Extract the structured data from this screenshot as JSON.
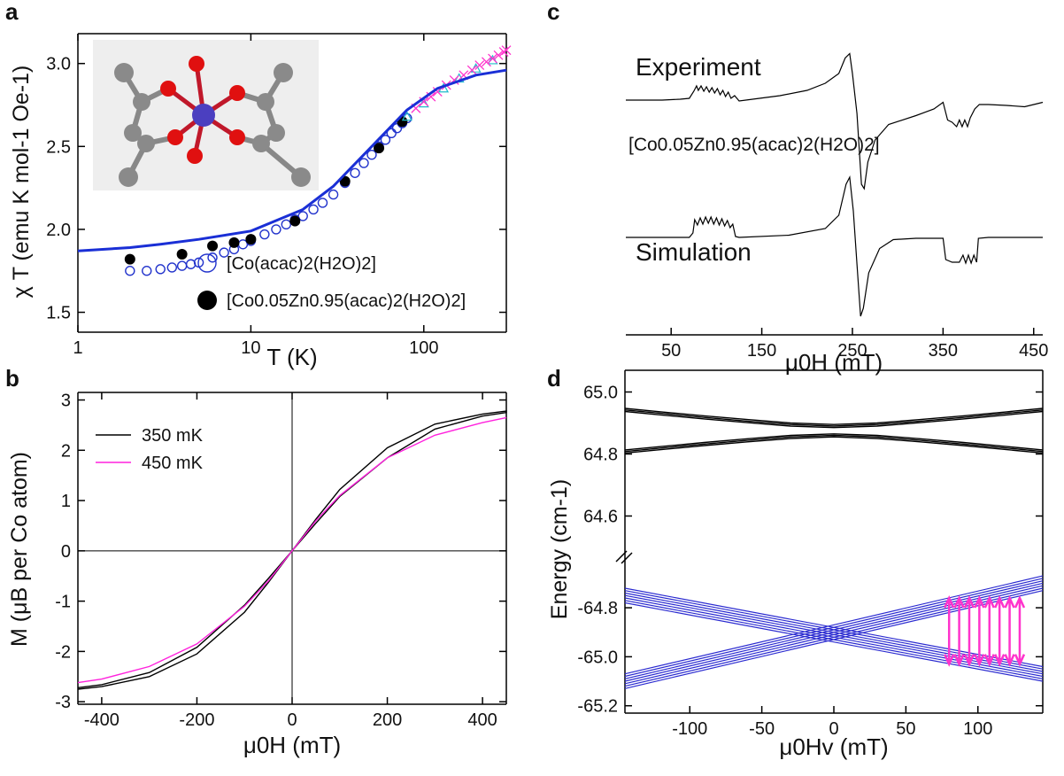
{
  "chart_data": [
    {
      "type": "scatter",
      "panel_label": "a",
      "xlabel": "T (K)",
      "ylabel": "χ T (emu K mol-1 Oe-1)",
      "xscale": "log",
      "xlim": [
        1,
        300
      ],
      "xticks": [
        1,
        10,
        100
      ],
      "ylim": [
        1.38,
        3.18
      ],
      "yticks": [
        1.5,
        {
          "value": 2,
          "label": "2.0"
        },
        2.5,
        {
          "value": 3,
          "label": "3.0"
        }
      ],
      "legend": "lower-center",
      "series": [
        {
          "name": "[Co(acac)2(H2O)2]",
          "color": "#2233cc",
          "marker": "open-circle",
          "x": [
            2,
            2.5,
            3,
            3.5,
            4,
            4.5,
            5,
            6,
            7,
            8,
            9,
            10,
            12,
            14,
            16,
            18,
            20,
            23,
            26,
            30,
            35,
            40,
            45,
            50,
            55,
            60,
            65,
            70,
            75,
            80
          ],
          "values": [
            1.75,
            1.75,
            1.76,
            1.77,
            1.78,
            1.79,
            1.8,
            1.83,
            1.86,
            1.88,
            1.91,
            1.93,
            1.97,
            2.0,
            2.03,
            2.06,
            2.08,
            2.12,
            2.16,
            2.21,
            2.28,
            2.34,
            2.4,
            2.45,
            2.5,
            2.54,
            2.58,
            2.61,
            2.64,
            2.67
          ]
        },
        {
          "name": "[Co0.05Zn0.95(acac)2(H2O)2]",
          "color": "#000000",
          "marker": "filled-circle",
          "x": [
            2,
            4,
            6,
            8,
            10,
            18,
            35,
            55,
            75
          ],
          "values": [
            1.82,
            1.85,
            1.9,
            1.92,
            1.94,
            2.05,
            2.29,
            2.49,
            2.65
          ]
        },
        {
          "color": "#22bbcc",
          "marker": "triangle",
          "x": [
            80,
            100,
            130,
            160,
            200,
            250
          ],
          "values": [
            2.68,
            2.76,
            2.85,
            2.91,
            2.97,
            3.02
          ]
        },
        {
          "color": "#ff33cc",
          "marker": "cross",
          "x": [
            90,
            100,
            110,
            120,
            135,
            150,
            170,
            190,
            210,
            230,
            250,
            270,
            290,
            300
          ],
          "values": [
            2.73,
            2.77,
            2.8,
            2.83,
            2.87,
            2.9,
            2.93,
            2.96,
            2.99,
            3.01,
            3.03,
            3.05,
            3.07,
            3.08
          ]
        },
        {
          "color": "#1a2fd6",
          "marker": "line",
          "x": [
            1,
            2,
            3,
            5,
            10,
            20,
            30,
            50,
            80,
            120,
            200,
            300
          ],
          "values": [
            1.87,
            1.89,
            1.91,
            1.94,
            1.99,
            2.12,
            2.26,
            2.5,
            2.72,
            2.85,
            2.93,
            2.96
          ]
        }
      ]
    },
    {
      "type": "line",
      "panel_label": "b",
      "xlabel": "μ0H (mT)",
      "ylabel": "M (μB per Co atom)",
      "xlim": [
        -450,
        450
      ],
      "xticks": [
        -400,
        -200,
        0,
        200,
        400
      ],
      "ylim": [
        -3.05,
        3.15
      ],
      "yticks": [
        -3,
        -2,
        -1,
        0,
        1,
        2,
        3
      ],
      "zero_lines": true,
      "legend": "upper-left",
      "series": [
        {
          "name": "350 mK",
          "color": "#000000",
          "marker": "line",
          "x": [
            -450,
            -400,
            -300,
            -200,
            -100,
            -50,
            0,
            50,
            100,
            200,
            300,
            400,
            450,
            450,
            400,
            300,
            200,
            100,
            50,
            0,
            -50,
            -100,
            -200,
            -300,
            -400,
            -450
          ],
          "values": [
            -2.72,
            -2.66,
            -2.42,
            -1.92,
            -1.08,
            -0.55,
            0,
            0.55,
            1.08,
            1.85,
            2.42,
            2.68,
            2.75,
            2.78,
            2.72,
            2.52,
            2.05,
            1.22,
            0.63,
            0,
            -0.63,
            -1.22,
            -2.05,
            -2.5,
            -2.7,
            -2.75
          ]
        },
        {
          "name": "450 mK",
          "color": "#ff22dd",
          "marker": "line",
          "x": [
            -450,
            -400,
            -300,
            -200,
            -100,
            -50,
            0,
            50,
            100,
            200,
            300,
            400,
            450
          ],
          "values": [
            -2.62,
            -2.55,
            -2.3,
            -1.85,
            -1.1,
            -0.6,
            0,
            0.6,
            1.1,
            1.85,
            2.3,
            2.55,
            2.65
          ]
        }
      ]
    },
    {
      "type": "spectra",
      "panel_label": "c",
      "xlabel": "μ0H (mT)",
      "xlim": [
        0,
        460
      ],
      "xticks": [
        50,
        150,
        250,
        350,
        450
      ],
      "annotation": "[Co0.05Zn0.95(acac)2(H2O)2]",
      "series": [
        {
          "name": "Experiment",
          "color": "#000000",
          "x": [
            0,
            20,
            40,
            60,
            70,
            75,
            78,
            80,
            83,
            86,
            89,
            92,
            95,
            98,
            101,
            104,
            107,
            110,
            113,
            116,
            120,
            125,
            140,
            170,
            200,
            220,
            235,
            242,
            247,
            250,
            255,
            260,
            263,
            267,
            275,
            290,
            320,
            340,
            350,
            355,
            360,
            365,
            368,
            371,
            374,
            377,
            380,
            385,
            390,
            400,
            420,
            440,
            450,
            460
          ],
          "values": [
            0,
            0,
            0,
            0.02,
            0.04,
            0.2,
            0.32,
            0.22,
            0.32,
            0.2,
            0.3,
            0.18,
            0.28,
            0.16,
            0.26,
            0.12,
            0.22,
            0.08,
            0.18,
            0.04,
            0.1,
            -0.02,
            0.02,
            0.1,
            0.22,
            0.38,
            0.6,
            0.95,
            1.05,
            0.6,
            -0.3,
            -1.9,
            -2.0,
            -1.4,
            -0.9,
            -0.55,
            -0.35,
            -0.2,
            -0.05,
            -0.45,
            -0.5,
            -0.6,
            -0.45,
            -0.6,
            -0.45,
            -0.6,
            -0.4,
            -0.2,
            -0.1,
            -0.1,
            -0.12,
            -0.15,
            -0.1,
            -0.05
          ]
        },
        {
          "name": "Simulation",
          "color": "#000000",
          "x": [
            0,
            70,
            74,
            76,
            79,
            82,
            85,
            88,
            91,
            94,
            97,
            100,
            103,
            106,
            109,
            112,
            115,
            118,
            121,
            125,
            180,
            220,
            235,
            243,
            247,
            251,
            255,
            259,
            262,
            268,
            280,
            295,
            320,
            350,
            353,
            360,
            368,
            372,
            375,
            378,
            381,
            384,
            387,
            389,
            400,
            460
          ],
          "values": [
            0,
            0,
            0.1,
            0.4,
            0.28,
            0.44,
            0.3,
            0.46,
            0.32,
            0.46,
            0.3,
            0.44,
            0.28,
            0.42,
            0.26,
            0.38,
            0.22,
            0.3,
            0.02,
            0,
            0.05,
            0.2,
            0.5,
            1.2,
            1.36,
            0.6,
            -0.6,
            -1.78,
            -1.6,
            -0.8,
            -0.25,
            -0.05,
            -0.02,
            -0.02,
            -0.5,
            -0.56,
            -0.56,
            -0.4,
            -0.58,
            -0.4,
            -0.58,
            -0.4,
            -0.56,
            -0.02,
            0,
            0
          ]
        }
      ]
    },
    {
      "type": "line",
      "panel_label": "d",
      "xlim": [
        -145,
        145
      ],
      "ylim": [
        64.47,
        65.07
      ],
      "yticks": [
        {
          "value": 65,
          "label": "65.0"
        },
        64.8,
        64.6
      ],
      "x": [
        -145,
        -120,
        -90,
        -60,
        -30,
        0,
        30,
        60,
        90,
        120,
        145
      ],
      "series": [
        {
          "color": "#000000",
          "values": [
            64.947,
            64.936,
            64.923,
            64.911,
            64.9,
            64.895,
            64.9,
            64.911,
            64.923,
            64.936,
            64.947
          ]
        },
        {
          "color": "#000000",
          "values": [
            64.942,
            64.931,
            64.918,
            64.906,
            64.895,
            64.89,
            64.895,
            64.906,
            64.918,
            64.931,
            64.942
          ]
        },
        {
          "color": "#000000",
          "values": [
            64.937,
            64.926,
            64.913,
            64.901,
            64.89,
            64.885,
            64.89,
            64.901,
            64.913,
            64.926,
            64.937
          ]
        },
        {
          "color": "#000000",
          "values": [
            64.813,
            64.824,
            64.837,
            64.849,
            64.86,
            64.865,
            64.86,
            64.849,
            64.837,
            64.824,
            64.813
          ]
        },
        {
          "color": "#000000",
          "values": [
            64.808,
            64.819,
            64.832,
            64.844,
            64.855,
            64.86,
            64.855,
            64.844,
            64.832,
            64.819,
            64.808
          ]
        },
        {
          "color": "#000000",
          "values": [
            64.803,
            64.814,
            64.827,
            64.839,
            64.85,
            64.855,
            64.85,
            64.839,
            64.827,
            64.814,
            64.803
          ]
        }
      ]
    },
    {
      "type": "line",
      "xlabel": "μ0Hv (mT)",
      "ylabel": "Energy (cm-1)",
      "xlim": [
        -145,
        145
      ],
      "xticks": [
        -100,
        -50,
        0,
        50,
        100
      ],
      "ylim": [
        -65.23,
        -64.59
      ],
      "yticks": [
        -64.8,
        {
          "value": -65,
          "label": "-65.0"
        },
        -65.2
      ],
      "x": [
        -145,
        145
      ],
      "series": [
        {
          "color": "#2a2ad0",
          "values": [
            -64.72,
            -65.04
          ]
        },
        {
          "color": "#2a2ad0",
          "values": [
            -64.73,
            -65.05
          ]
        },
        {
          "color": "#2a2ad0",
          "values": [
            -64.74,
            -65.06
          ]
        },
        {
          "color": "#2a2ad0",
          "values": [
            -64.75,
            -65.07
          ]
        },
        {
          "color": "#2a2ad0",
          "values": [
            -64.76,
            -65.08
          ]
        },
        {
          "color": "#2a2ad0",
          "values": [
            -64.77,
            -65.09
          ]
        },
        {
          "color": "#2a2ad0",
          "values": [
            -64.78,
            -65.1
          ]
        },
        {
          "color": "#2a2ad0",
          "values": [
            -65.07,
            -64.67
          ]
        },
        {
          "color": "#2a2ad0",
          "values": [
            -65.08,
            -64.68
          ]
        },
        {
          "color": "#2a2ad0",
          "values": [
            -65.09,
            -64.69
          ]
        },
        {
          "color": "#2a2ad0",
          "values": [
            -65.1,
            -64.7
          ]
        },
        {
          "color": "#2a2ad0",
          "values": [
            -65.11,
            -64.71
          ]
        },
        {
          "color": "#2a2ad0",
          "values": [
            -65.12,
            -64.72
          ]
        },
        {
          "color": "#2a2ad0",
          "values": [
            -65.13,
            -64.73
          ]
        }
      ],
      "arrows": {
        "color": "#ff33cc",
        "x": [
          80,
          87,
          94,
          101,
          108,
          115,
          122,
          129
        ],
        "y1": [
          -65.03,
          -65.03,
          -65.03,
          -65.03,
          -65.03,
          -65.03,
          -65.03,
          -65.03
        ],
        "y2": [
          -64.76,
          -64.76,
          -64.76,
          -64.76,
          -64.76,
          -64.76,
          -64.76,
          -64.76
        ]
      }
    }
  ]
}
